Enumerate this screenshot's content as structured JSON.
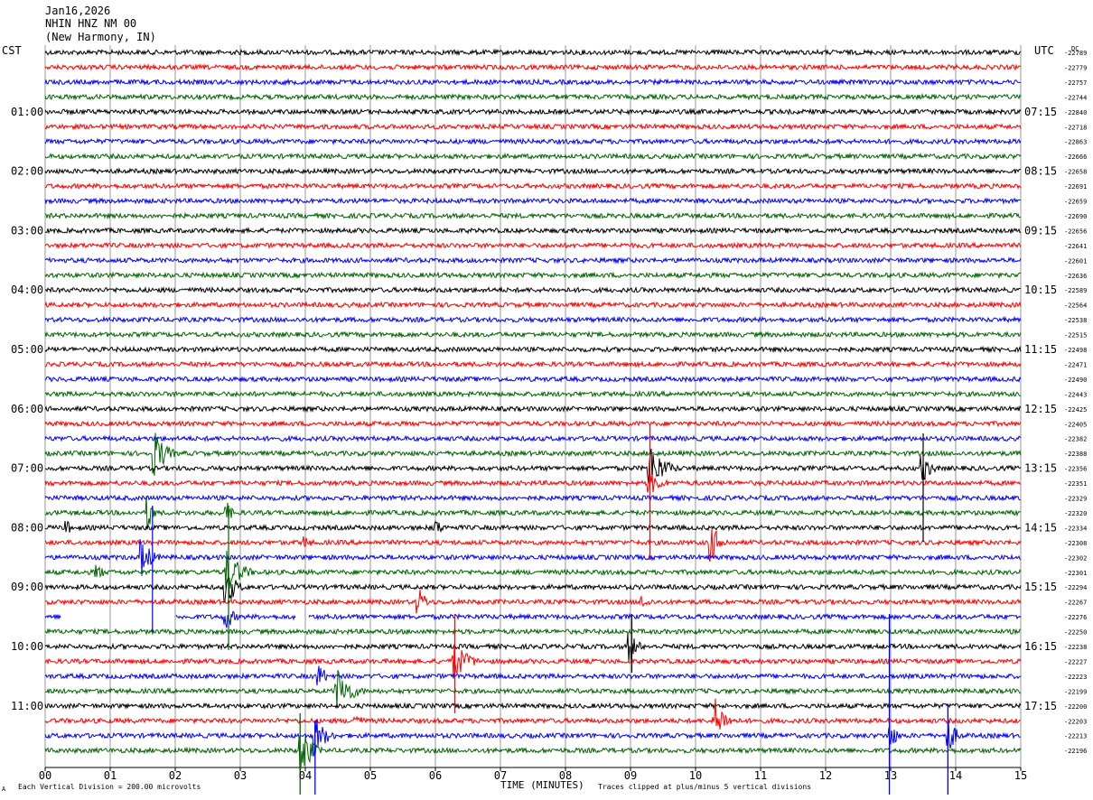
{
  "header": {
    "date": "Jan16,2026",
    "station": "NHIN HNZ NM 00",
    "location": "(New Harmony, IN)"
  },
  "left_timezone": "CST",
  "right_timezone": "UTC",
  "right_column_label": "DC",
  "footer": {
    "scale_note": "Each Vertical Division =  200.00 microvolts",
    "clip_note": "Traces clipped at plus/minus 5 vertical divisions",
    "corner_mark": "A"
  },
  "chart_data": {
    "type": "line",
    "title": "",
    "xlabel": "TIME (MINUTES)",
    "x_ticks": [
      "00",
      "01",
      "02",
      "03",
      "04",
      "05",
      "06",
      "07",
      "08",
      "09",
      "10",
      "11",
      "12",
      "13",
      "14",
      "15"
    ],
    "xlim": [
      0,
      15
    ],
    "trace_colors": [
      "#000000",
      "#ff0000",
      "#0000ff",
      "#006400"
    ],
    "left_hour_labels": [
      "01:00",
      "02:00",
      "03:00",
      "04:00",
      "05:00",
      "06:00",
      "07:00",
      "08:00",
      "09:00",
      "10:00",
      "11:00"
    ],
    "right_hour_labels": [
      "07:15",
      "08:15",
      "09:15",
      "10:15",
      "11:15",
      "12:15",
      "13:15",
      "14:15",
      "15:15",
      "16:15",
      "17:15"
    ],
    "dc_offsets": [
      "22789",
      "22779",
      "22757",
      "22744",
      "22840",
      "22718",
      "22863",
      "22666",
      "22658",
      "22691",
      "22659",
      "22690",
      "22656",
      "22641",
      "22601",
      "22636",
      "22589",
      "22564",
      "22538",
      "22515",
      "22498",
      "22471",
      "22490",
      "22443",
      "22425",
      "22405",
      "22382",
      "22388",
      "22356",
      "22351",
      "22329",
      "22320",
      "22334",
      "22308",
      "22302",
      "22301",
      "22294",
      "22267",
      "22276",
      "22250",
      "22238",
      "22227",
      "22223",
      "22199",
      "22200",
      "22203",
      "22213",
      "22196"
    ],
    "events": [
      {
        "row": 27,
        "minute": 1.7,
        "amp": 26,
        "dur": 0.35
      },
      {
        "row": 28,
        "minute": 9.3,
        "amp": 28,
        "dur": 0.45
      },
      {
        "row": 28,
        "minute": 13.5,
        "amp": 16,
        "dur": 0.3
      },
      {
        "row": 29,
        "minute": 9.3,
        "amp": 14,
        "dur": 0.4
      },
      {
        "row": 31,
        "minute": 1.6,
        "amp": 20,
        "dur": 0.15
      },
      {
        "row": 31,
        "minute": 2.8,
        "amp": 12,
        "dur": 0.2
      },
      {
        "row": 32,
        "minute": 6.0,
        "amp": 10,
        "dur": 0.3
      },
      {
        "row": 32,
        "minute": 0.35,
        "amp": 8,
        "dur": 0.15
      },
      {
        "row": 33,
        "minute": 10.25,
        "amp": 22,
        "dur": 0.3
      },
      {
        "row": 33,
        "minute": 4.0,
        "amp": 8,
        "dur": 0.25
      },
      {
        "row": 34,
        "minute": 1.5,
        "amp": 22,
        "dur": 0.3
      },
      {
        "row": 35,
        "minute": 2.8,
        "amp": 26,
        "dur": 0.45
      },
      {
        "row": 35,
        "minute": 0.8,
        "amp": 10,
        "dur": 0.25
      },
      {
        "row": 36,
        "minute": 2.8,
        "amp": 22,
        "dur": 0.3
      },
      {
        "row": 37,
        "minute": 5.75,
        "amp": 16,
        "dur": 0.25
      },
      {
        "row": 37,
        "minute": 9.2,
        "amp": 8,
        "dur": 0.3
      },
      {
        "row": 38,
        "minute": 2.8,
        "amp": 14,
        "dur": 0.25
      },
      {
        "row": 40,
        "minute": 9.0,
        "amp": 18,
        "dur": 0.25
      },
      {
        "row": 41,
        "minute": 6.3,
        "amp": 22,
        "dur": 0.45
      },
      {
        "row": 42,
        "minute": 4.2,
        "amp": 14,
        "dur": 0.3
      },
      {
        "row": 43,
        "minute": 4.5,
        "amp": 26,
        "dur": 0.45
      },
      {
        "row": 45,
        "minute": 10.3,
        "amp": 26,
        "dur": 0.35
      },
      {
        "row": 45,
        "minute": 4.8,
        "amp": 8,
        "dur": 0.25
      },
      {
        "row": 46,
        "minute": 4.15,
        "amp": 24,
        "dur": 0.35
      },
      {
        "row": 46,
        "minute": 13.0,
        "amp": 18,
        "dur": 0.2
      },
      {
        "row": 46,
        "minute": 13.9,
        "amp": 20,
        "dur": 0.25
      },
      {
        "row": 47,
        "minute": 3.95,
        "amp": 32,
        "dur": 0.3
      }
    ],
    "gaps": [
      {
        "row": 38,
        "from": 0.25,
        "to": 2.0
      },
      {
        "row": 38,
        "from": 3.85,
        "to": 4.05
      }
    ]
  }
}
